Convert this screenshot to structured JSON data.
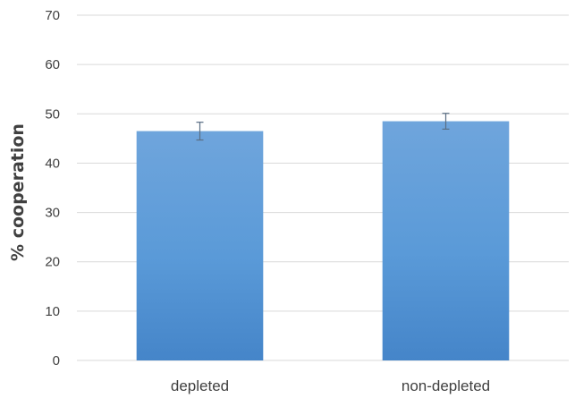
{
  "chart_data": {
    "type": "bar",
    "title": "",
    "xlabel": "",
    "ylabel": "% cooperation",
    "categories": [
      "depleted",
      "non-depleted"
    ],
    "values": [
      46.5,
      48.5
    ],
    "error": [
      1.8,
      1.6
    ],
    "ylim": [
      0,
      70
    ],
    "yticks": [
      0,
      10,
      20,
      30,
      40,
      50,
      60,
      70
    ],
    "grid": true,
    "bar_color": "#5b9bd5"
  }
}
